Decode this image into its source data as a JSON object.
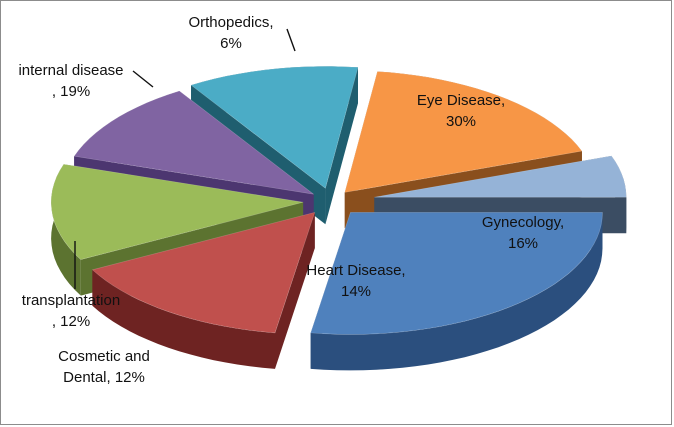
{
  "chart_data": {
    "type": "pie",
    "title": "",
    "style": "3d-exploded",
    "legend": "none",
    "slices": [
      {
        "name": "Eye Disease",
        "value": 30,
        "label": "30%",
        "color": "#4f81bd",
        "side": "#2b4f7e",
        "line1": "Eye Disease,",
        "line2": "30%"
      },
      {
        "name": "Gynecology",
        "value": 16,
        "label": "16%",
        "color": "#c0504d",
        "side": "#6e2322",
        "line1": "Gynecology,",
        "line2": "16%"
      },
      {
        "name": "Heart Disease",
        "value": 14,
        "label": "14%",
        "color": "#9bbb59",
        "side": "#5c7330",
        "line1": "Heart Disease,",
        "line2": "14%"
      },
      {
        "name": "Cosmetic and Dental",
        "value": 12,
        "label": "12%",
        "color": "#8064a2",
        "side": "#4c3670",
        "line1": "Cosmetic and",
        "line2": "Dental, 12%"
      },
      {
        "name": "transplantation",
        "value": 12,
        "label": "12%",
        "color": "#4bacc6",
        "side": "#1f5e6f",
        "line1": "transplantation",
        "line2": ", 12%"
      },
      {
        "name": "internal disease",
        "value": 19,
        "label": "19%",
        "color": "#f79646",
        "side": "#8a4f1d",
        "line1": "internal disease",
        "line2": ", 19%"
      },
      {
        "name": "Orthopedics",
        "value": 6,
        "label": "6%",
        "color": "#95b3d7",
        "side": "#3b4d63",
        "line1": "Orthopedics,",
        "line2": "6%"
      }
    ]
  }
}
